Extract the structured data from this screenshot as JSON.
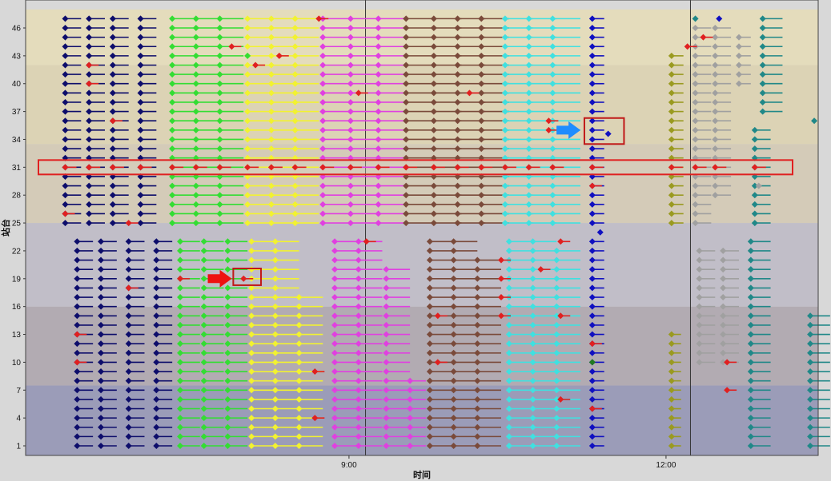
{
  "chart_data": {
    "type": "scatter",
    "xlabel": "时间",
    "ylabel": "站台",
    "x_ticks": [
      {
        "value": "9:00"
      },
      {
        "value": "12:00"
      }
    ],
    "y_ticks": [
      "1",
      "4",
      "7",
      "10",
      "13",
      "16",
      "19",
      "22",
      "25",
      "28",
      "31",
      "34",
      "37",
      "40",
      "43",
      "46"
    ],
    "ylim": [
      0,
      48
    ],
    "bands": [
      {
        "from": 0,
        "to": 7.5,
        "color": "#9b9cb8"
      },
      {
        "from": 7.5,
        "to": 16,
        "color": "#b2abb2"
      },
      {
        "from": 16,
        "to": 25,
        "color": "#c1bec8"
      },
      {
        "from": 25,
        "to": 33.5,
        "color": "#d4cbb8"
      },
      {
        "from": 33.5,
        "to": 42,
        "color": "#dcd3b5"
      },
      {
        "from": 42,
        "to": 48,
        "color": "#e4dcbc"
      }
    ],
    "series": [
      {
        "color": "#0d0d6b",
        "columns": [
          {
            "t": 0.05,
            "from": 25,
            "to": 47,
            "tail": 0.02
          },
          {
            "t": 0.08,
            "from": 25,
            "to": 47,
            "tail": 0.02
          },
          {
            "t": 0.11,
            "from": 25,
            "to": 47,
            "tail": 0.02
          },
          {
            "t": 0.145,
            "from": 25,
            "to": 47,
            "tail": 0.02
          },
          {
            "t": 0.065,
            "from": 1,
            "to": 23,
            "tail": 0.02
          },
          {
            "t": 0.095,
            "from": 1,
            "to": 23,
            "tail": 0.02
          },
          {
            "t": 0.13,
            "from": 1,
            "to": 23,
            "tail": 0.02
          },
          {
            "t": 0.165,
            "from": 1,
            "to": 23,
            "tail": 0.02
          }
        ]
      },
      {
        "color": "#33dd33",
        "columns": [
          {
            "t": 0.185,
            "from": 25,
            "to": 47,
            "tail": 0.03
          },
          {
            "t": 0.215,
            "from": 25,
            "to": 47,
            "tail": 0.03
          },
          {
            "t": 0.245,
            "from": 25,
            "to": 47,
            "tail": 0.03
          },
          {
            "t": 0.195,
            "from": 1,
            "to": 23,
            "tail": 0.025
          },
          {
            "t": 0.225,
            "from": 1,
            "to": 23,
            "tail": 0.025
          },
          {
            "t": 0.255,
            "from": 1,
            "to": 23,
            "tail": 0.025
          }
        ]
      },
      {
        "color": "#f2f230",
        "columns": [
          {
            "t": 0.28,
            "from": 25,
            "to": 47,
            "tail": 0.03
          },
          {
            "t": 0.31,
            "from": 25,
            "to": 47,
            "tail": 0.03
          },
          {
            "t": 0.34,
            "from": 25,
            "to": 47,
            "tail": 0.03
          },
          {
            "t": 0.285,
            "from": 1,
            "to": 23,
            "tail": 0.03
          },
          {
            "t": 0.315,
            "from": 1,
            "to": 23,
            "tail": 0.03
          },
          {
            "t": 0.345,
            "from": 1,
            "to": 17,
            "tail": 0.03
          }
        ]
      },
      {
        "color": "#e040e0",
        "columns": [
          {
            "t": 0.375,
            "from": 25,
            "to": 47,
            "tail": 0.035
          },
          {
            "t": 0.41,
            "from": 25,
            "to": 47,
            "tail": 0.035
          },
          {
            "t": 0.445,
            "from": 25,
            "to": 47,
            "tail": 0.035
          },
          {
            "t": 0.39,
            "from": 1,
            "to": 23,
            "tail": 0.03
          },
          {
            "t": 0.42,
            "from": 1,
            "to": 23,
            "tail": 0.03
          },
          {
            "t": 0.455,
            "from": 1,
            "to": 20,
            "tail": 0.03
          },
          {
            "t": 0.485,
            "from": 1,
            "to": 8,
            "tail": 0.02
          }
        ]
      },
      {
        "color": "#7a4a3a",
        "columns": [
          {
            "t": 0.48,
            "from": 25,
            "to": 47,
            "tail": 0.035
          },
          {
            "t": 0.515,
            "from": 25,
            "to": 47,
            "tail": 0.035
          },
          {
            "t": 0.545,
            "from": 25,
            "to": 47,
            "tail": 0.035
          },
          {
            "t": 0.575,
            "from": 25,
            "to": 47,
            "tail": 0.035
          },
          {
            "t": 0.51,
            "from": 1,
            "to": 23,
            "tail": 0.03
          },
          {
            "t": 0.54,
            "from": 1,
            "to": 23,
            "tail": 0.03
          },
          {
            "t": 0.57,
            "from": 1,
            "to": 21,
            "tail": 0.03
          }
        ]
      },
      {
        "color": "#40e0e0",
        "columns": [
          {
            "t": 0.605,
            "from": 25,
            "to": 47,
            "tail": 0.035
          },
          {
            "t": 0.635,
            "from": 25,
            "to": 47,
            "tail": 0.035
          },
          {
            "t": 0.665,
            "from": 25,
            "to": 47,
            "tail": 0.035
          },
          {
            "t": 0.61,
            "from": 1,
            "to": 23,
            "tail": 0.03
          },
          {
            "t": 0.64,
            "from": 1,
            "to": 23,
            "tail": 0.03
          },
          {
            "t": 0.67,
            "from": 1,
            "to": 22,
            "tail": 0.03
          }
        ]
      },
      {
        "color": "#1010c0",
        "columns": [
          {
            "t": 0.715,
            "from": 25,
            "to": 47,
            "tail": 0.015
          },
          {
            "t": 0.715,
            "from": 1,
            "to": 23,
            "tail": 0.015
          }
        ]
      },
      {
        "color": "#9a9a20",
        "columns": [
          {
            "t": 0.815,
            "from": 25,
            "to": 43,
            "tail": 0.015
          },
          {
            "t": 0.815,
            "from": 1,
            "to": 13,
            "tail": 0.012
          }
        ]
      },
      {
        "color": "#a0a0a0",
        "columns": [
          {
            "t": 0.845,
            "from": 25,
            "to": 46,
            "tail": 0.02
          },
          {
            "t": 0.87,
            "from": 28,
            "to": 46,
            "tail": 0.02
          },
          {
            "t": 0.9,
            "from": 40,
            "to": 45,
            "tail": 0.015
          },
          {
            "t": 0.85,
            "from": 10,
            "to": 22,
            "tail": 0.02
          },
          {
            "t": 0.88,
            "from": 10,
            "to": 22,
            "tail": 0.02
          }
        ]
      },
      {
        "color": "#208888",
        "columns": [
          {
            "t": 0.93,
            "from": 37,
            "to": 47,
            "tail": 0.025
          },
          {
            "t": 0.92,
            "from": 25,
            "to": 35,
            "tail": 0.02
          },
          {
            "t": 0.915,
            "from": 1,
            "to": 23,
            "tail": 0.025
          },
          {
            "t": 0.99,
            "from": 1,
            "to": 15,
            "tail": 0.025
          }
        ]
      }
    ],
    "extra_points": [
      {
        "t": 0.995,
        "y": 36,
        "color": "#208888"
      },
      {
        "t": 0.725,
        "y": 24,
        "color": "#1010c0"
      },
      {
        "t": 0.735,
        "y": 34.6,
        "color": "#1010c0"
      },
      {
        "t": 0.845,
        "y": 47,
        "color": "#208888"
      },
      {
        "t": 0.875,
        "y": 47,
        "color": "#1010c0"
      },
      {
        "t": 0.925,
        "y": 29,
        "color": "#a0a0a0"
      },
      {
        "t": 0.715,
        "y": 10,
        "color": "#207a20"
      },
      {
        "t": 0.28,
        "y": 43,
        "color": "#33dd33"
      }
    ],
    "red_markers": [
      {
        "t": 0.05,
        "y": 26
      },
      {
        "t": 0.08,
        "y": 42
      },
      {
        "t": 0.08,
        "y": 40
      },
      {
        "t": 0.11,
        "y": 36
      },
      {
        "t": 0.13,
        "y": 25
      },
      {
        "t": 0.13,
        "y": 18
      },
      {
        "t": 0.065,
        "y": 13
      },
      {
        "t": 0.065,
        "y": 10
      },
      {
        "t": 0.195,
        "y": 19
      },
      {
        "t": 0.275,
        "y": 19
      },
      {
        "t": 0.26,
        "y": 44
      },
      {
        "t": 0.29,
        "y": 42
      },
      {
        "t": 0.32,
        "y": 43
      },
      {
        "t": 0.37,
        "y": 47
      },
      {
        "t": 0.42,
        "y": 39
      },
      {
        "t": 0.43,
        "y": 23
      },
      {
        "t": 0.365,
        "y": 9
      },
      {
        "t": 0.365,
        "y": 4
      },
      {
        "t": 0.52,
        "y": 15
      },
      {
        "t": 0.52,
        "y": 10
      },
      {
        "t": 0.56,
        "y": 39
      },
      {
        "t": 0.6,
        "y": 21
      },
      {
        "t": 0.6,
        "y": 19
      },
      {
        "t": 0.6,
        "y": 17
      },
      {
        "t": 0.6,
        "y": 15
      },
      {
        "t": 0.65,
        "y": 20
      },
      {
        "t": 0.66,
        "y": 36
      },
      {
        "t": 0.66,
        "y": 35
      },
      {
        "t": 0.675,
        "y": 23
      },
      {
        "t": 0.675,
        "y": 15
      },
      {
        "t": 0.675,
        "y": 6
      },
      {
        "t": 0.715,
        "y": 29
      },
      {
        "t": 0.715,
        "y": 12
      },
      {
        "t": 0.715,
        "y": 5
      },
      {
        "t": 0.835,
        "y": 44
      },
      {
        "t": 0.855,
        "y": 45
      },
      {
        "t": 0.885,
        "y": 7
      },
      {
        "t": 0.885,
        "y": 10
      }
    ],
    "highlight_row": {
      "y": 31
    },
    "highlight_boxes": [
      {
        "t1": 0.705,
        "t2": 0.755,
        "y1": 33.5,
        "y2": 36.3
      },
      {
        "t1": 0.262,
        "t2": 0.297,
        "y1": 18.3,
        "y2": 20.1
      }
    ],
    "arrows": [
      {
        "t": 0.685,
        "y": 35,
        "color": "#1e8cff"
      },
      {
        "t": 0.245,
        "y": 19,
        "color": "#ee1111"
      }
    ],
    "vlines": [
      0.445,
      0.855
    ]
  }
}
